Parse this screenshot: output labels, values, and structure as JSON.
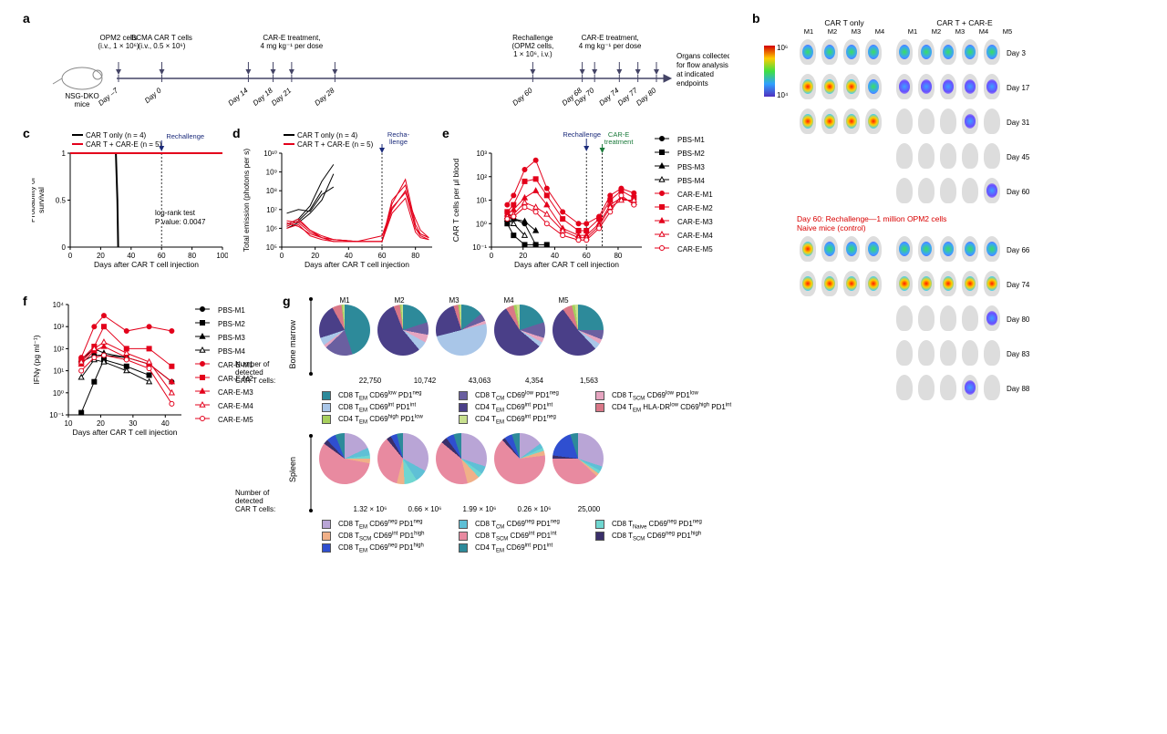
{
  "panels": {
    "a": "a",
    "b": "b",
    "c": "c",
    "d": "d",
    "e": "e",
    "f": "f",
    "g": "g"
  },
  "timeline": {
    "mouse_label": "NSG-DKO\nmice",
    "end_label": "Organs collected\nfor flow analysis\nat indicated\nendpoints",
    "events": [
      {
        "day": -7,
        "label": "OPM2 cells\n(i.v., 1 × 10⁶)"
      },
      {
        "day": 0,
        "label": "BCMA CAR T cells\n(i.v., 0.5 × 10⁶)"
      },
      {
        "day": 14,
        "label": "CAR-E treatment,\n4 mg kg⁻¹ per dose"
      },
      {
        "day": 18,
        "label": ""
      },
      {
        "day": 21,
        "label": ""
      },
      {
        "day": 28,
        "label": ""
      },
      {
        "day": 60,
        "label": "Rechallenge\n(OPM2 cells,\n1 × 10⁶, i.v.)"
      },
      {
        "day": 68,
        "label": "CAR-E treatment,\n4 mg kg⁻¹ per dose"
      },
      {
        "day": 70,
        "label": ""
      },
      {
        "day": 74,
        "label": ""
      },
      {
        "day": 77,
        "label": ""
      },
      {
        "day": 80,
        "label": ""
      }
    ],
    "day_labels": [
      "Day –7",
      "Day 0",
      "Day 14",
      "Day 18",
      "Day 21",
      "Day 28",
      "Day 60",
      "Day 68",
      "Day 70",
      "Day 74",
      "Day 77",
      "Day 80"
    ]
  },
  "imaging": {
    "col_headers": [
      "CAR T only",
      "CAR T + CAR-E"
    ],
    "mice_headers_left": [
      "M1",
      "M2",
      "M3",
      "M4"
    ],
    "mice_headers_right": [
      "M1",
      "M2",
      "M3",
      "M4",
      "M5"
    ],
    "rows_top": [
      "Day 3",
      "Day 17",
      "Day 31",
      "Day 45",
      "Day 60"
    ],
    "left_present": [
      true,
      true,
      true,
      false,
      false
    ],
    "rechallenge_text": "Day 60: Rechallenge—1 million OPM2 cells",
    "naive_text": "Naive mice (control)",
    "rows_bottom": [
      "Day 66",
      "Day 74",
      "Day 80",
      "Day 83",
      "Day 88"
    ],
    "bottom_left_present": [
      true,
      true,
      false,
      false,
      false
    ],
    "colorbar": {
      "min_label": "10⁴",
      "max_label": "10⁶"
    },
    "intensity_colors": {
      "high": "linear-gradient(circle, #ff0000, #ffff00)",
      "c_high": "radial-gradient(circle, #ff1a00 0%, #ffd000 40%, #3dd0ff 80%)",
      "c_med": "radial-gradient(circle, #38e060 0%, #3da0ff 60%, #6a4dff 100%)",
      "c_low": "radial-gradient(circle, #3da0ff 0%, #6a4dff 60%, rgba(0,0,0,0) 100%)",
      "c_none": "none"
    },
    "top_intensity": {
      "left": [
        [
          "c_med",
          "c_med",
          "c_med",
          "c_med"
        ],
        [
          "c_high",
          "c_high",
          "c_high",
          "c_med"
        ],
        [
          "c_high",
          "c_high",
          "c_high",
          "c_high"
        ]
      ],
      "right": [
        [
          "c_med",
          "c_med",
          "c_med",
          "c_med",
          "c_med"
        ],
        [
          "c_low",
          "c_low",
          "c_low",
          "c_low",
          "c_low"
        ],
        [
          "c_none",
          "c_none",
          "c_none",
          "c_low",
          "c_none"
        ],
        [
          "c_none",
          "c_none",
          "c_none",
          "c_none",
          "c_none"
        ],
        [
          "c_none",
          "c_none",
          "c_none",
          "c_none",
          "c_low"
        ]
      ]
    },
    "bottom_intensity": {
      "left": [
        [
          "c_high",
          "c_med",
          "c_med",
          "c_med"
        ],
        [
          "c_high",
          "c_high",
          "c_high",
          "c_high"
        ]
      ],
      "right": [
        [
          "c_med",
          "c_med",
          "c_med",
          "c_med",
          "c_med"
        ],
        [
          "c_high",
          "c_high",
          "c_high",
          "c_high",
          "c_high"
        ],
        [
          "c_none",
          "c_none",
          "c_none",
          "c_none",
          "c_low"
        ],
        [
          "c_none",
          "c_none",
          "c_none",
          "c_none",
          "c_none"
        ],
        [
          "c_none",
          "c_none",
          "c_none",
          "c_low",
          "c_none"
        ]
      ]
    }
  },
  "panelC": {
    "ylabel": "Probability of\nsurvival",
    "xlabel": "Days after CAR T cell injection",
    "legend": [
      {
        "label": "CAR T only (n = 4)",
        "color": "#000000"
      },
      {
        "label": "CAR T + CAR-E (n = 5)",
        "color": "#e3001b"
      }
    ],
    "rechallenge": "Rechallenge",
    "stats": "log-rank test\nP value: 0.0047",
    "xlim": [
      0,
      100
    ],
    "xticks": [
      0,
      20,
      40,
      60,
      80,
      100
    ],
    "ylim": [
      0,
      1.0
    ],
    "yticks": [
      0,
      0.5,
      1.0
    ],
    "series": {
      "CAR_T_only": {
        "x": [
          0,
          30,
          31,
          31.5
        ],
        "y": [
          1,
          1,
          0.5,
          0
        ],
        "color": "#000000"
      },
      "CAR_T_CARE": {
        "x": [
          0,
          100
        ],
        "y": [
          1,
          1
        ],
        "color": "#e3001b"
      }
    },
    "rechallenge_x": 60
  },
  "panelD": {
    "ylabel": "Total emission (photons per s)",
    "xlabel": "Days after CAR T cell injection",
    "legend": [
      {
        "label": "CAR T only (n = 4)",
        "color": "#000000"
      },
      {
        "label": "CAR T + CAR-E (n = 5)",
        "color": "#e3001b"
      }
    ],
    "rechallenge": "Recha-\nllenge",
    "xlim": [
      0,
      90
    ],
    "xticks": [
      0,
      20,
      40,
      60,
      80
    ],
    "ylim": [
      5,
      10
    ],
    "yticks_labels": [
      "10⁵",
      "10⁶",
      "10⁷",
      "10⁸",
      "10⁹",
      "10¹⁰"
    ],
    "rechallenge_x": 60,
    "series_black": [
      {
        "x": [
          3,
          10,
          17,
          24,
          31
        ],
        "y": [
          6.2,
          6.5,
          7.2,
          8.5,
          9.4
        ]
      },
      {
        "x": [
          3,
          10,
          17,
          24,
          31
        ],
        "y": [
          6.0,
          6.3,
          6.8,
          7.5,
          8.9
        ]
      },
      {
        "x": [
          3,
          10,
          17,
          24
        ],
        "y": [
          6.1,
          6.4,
          7.0,
          8.0
        ]
      },
      {
        "x": [
          3,
          10,
          17,
          24,
          31
        ],
        "y": [
          6.8,
          7.0,
          6.9,
          7.8,
          8.2
        ]
      }
    ],
    "series_red": [
      {
        "x": [
          3,
          10,
          17,
          24,
          31,
          45,
          60,
          66,
          74,
          80,
          83,
          88
        ],
        "y": [
          6.2,
          6.5,
          5.9,
          5.6,
          5.4,
          5.3,
          5.3,
          7.3,
          8.6,
          6.2,
          5.7,
          5.5
        ]
      },
      {
        "x": [
          3,
          10,
          17,
          24,
          31,
          45,
          60,
          66,
          74,
          80,
          83,
          88
        ],
        "y": [
          6.4,
          6.3,
          5.8,
          5.5,
          5.4,
          5.3,
          5.3,
          7.0,
          8.0,
          6.0,
          5.6,
          5.4
        ]
      },
      {
        "x": [
          3,
          10,
          17,
          24,
          31,
          45,
          60,
          66,
          74,
          80,
          83,
          88
        ],
        "y": [
          6.3,
          6.1,
          5.7,
          5.5,
          5.3,
          5.3,
          5.3,
          7.5,
          8.3,
          6.0,
          5.7,
          5.5
        ]
      },
      {
        "x": [
          3,
          10,
          17,
          24,
          31,
          45,
          60,
          66,
          74,
          80,
          83,
          88
        ],
        "y": [
          6.0,
          6.2,
          5.6,
          5.4,
          5.3,
          5.3,
          5.3,
          6.8,
          7.6,
          5.8,
          5.5,
          5.4
        ]
      },
      {
        "x": [
          3,
          10,
          17,
          24,
          31,
          45,
          60,
          66,
          74,
          80,
          83,
          88
        ],
        "y": [
          6.1,
          6.4,
          5.9,
          5.5,
          5.4,
          5.3,
          5.6,
          7.1,
          7.9,
          6.5,
          5.9,
          5.5
        ]
      }
    ]
  },
  "panelE": {
    "ylabel": "CAR T cells per μl blood",
    "xlabel": "Days after CAR T cell injection",
    "rechallenge": "Rechallenge",
    "care_treat": "CAR-E\ntreatment",
    "rechallenge_x": 60,
    "care_x": 70,
    "xlim": [
      0,
      95
    ],
    "xticks": [
      0,
      20,
      40,
      60,
      80
    ],
    "ylim": [
      -1,
      3
    ],
    "yticks_labels": [
      "10⁻¹",
      "10⁰",
      "10¹",
      "10²",
      "10³"
    ],
    "legend": [
      {
        "id": "PBS-M1",
        "color": "#000",
        "marker": "circle",
        "fill": true
      },
      {
        "id": "PBS-M2",
        "color": "#000",
        "marker": "square",
        "fill": true
      },
      {
        "id": "PBS-M3",
        "color": "#000",
        "marker": "triangle",
        "fill": true
      },
      {
        "id": "PBS-M4",
        "color": "#000",
        "marker": "triangle",
        "fill": false
      },
      {
        "id": "CAR-E-M1",
        "color": "#e3001b",
        "marker": "circle",
        "fill": true
      },
      {
        "id": "CAR-E-M2",
        "color": "#e3001b",
        "marker": "square",
        "fill": true
      },
      {
        "id": "CAR-E-M3",
        "color": "#e3001b",
        "marker": "triangle",
        "fill": true
      },
      {
        "id": "CAR-E-M4",
        "color": "#e3001b",
        "marker": "triangle",
        "fill": false
      },
      {
        "id": "CAR-E-M5",
        "color": "#e3001b",
        "marker": "circle",
        "fill": false
      }
    ],
    "series": {
      "pbs": [
        {
          "x": [
            10,
            14,
            21,
            28
          ],
          "y": [
            0.5,
            0.2,
            0.0,
            -0.9
          ]
        },
        {
          "x": [
            10,
            14,
            21,
            28,
            35
          ],
          "y": [
            0.0,
            -0.5,
            -0.9,
            -0.9,
            -0.9
          ]
        },
        {
          "x": [
            10,
            14,
            21,
            28
          ],
          "y": [
            0.3,
            0.2,
            0.1,
            -0.3
          ]
        },
        {
          "x": [
            10,
            14,
            21
          ],
          "y": [
            0.2,
            0.0,
            -0.5
          ]
        }
      ],
      "care": [
        {
          "x": [
            10,
            14,
            21,
            28,
            35,
            45,
            55,
            60,
            68,
            75,
            82,
            90
          ],
          "y": [
            0.8,
            1.2,
            2.3,
            2.7,
            1.5,
            0.5,
            0.0,
            0.0,
            0.3,
            1.2,
            1.5,
            1.3
          ]
        },
        {
          "x": [
            10,
            14,
            21,
            28,
            35,
            45,
            55,
            60,
            68,
            75,
            82,
            90
          ],
          "y": [
            0.5,
            0.8,
            1.8,
            1.9,
            1.2,
            0.2,
            -0.3,
            -0.3,
            0.2,
            1.0,
            1.4,
            1.1
          ]
        },
        {
          "x": [
            10,
            14,
            21,
            28,
            35,
            45,
            55,
            60,
            68,
            75,
            82,
            90
          ],
          "y": [
            0.4,
            0.6,
            1.1,
            1.4,
            0.8,
            -0.2,
            -0.5,
            -0.5,
            0.0,
            0.8,
            1.1,
            0.9
          ]
        },
        {
          "x": [
            10,
            14,
            21,
            28,
            35,
            45,
            55,
            60,
            68,
            75,
            82,
            90
          ],
          "y": [
            0.3,
            0.4,
            0.9,
            0.7,
            0.4,
            -0.3,
            -0.6,
            -0.6,
            -0.1,
            0.7,
            1.0,
            1.0
          ]
        },
        {
          "x": [
            10,
            14,
            21,
            28,
            35,
            45,
            55,
            60,
            68,
            75,
            82,
            90
          ],
          "y": [
            0.2,
            0.3,
            0.7,
            0.5,
            0.0,
            -0.5,
            -0.7,
            -0.7,
            -0.2,
            0.5,
            1.2,
            0.8
          ]
        }
      ]
    }
  },
  "panelF": {
    "ylabel": "IFNγ (pg ml⁻¹)",
    "xlabel": "Days after CAR T cell injection",
    "xlim": [
      10,
      45
    ],
    "xticks": [
      10,
      20,
      30,
      40
    ],
    "ylim": [
      -1,
      4
    ],
    "yticks_labels": [
      "10⁻¹",
      "10⁰",
      "10¹",
      "10²",
      "10³",
      "10⁴"
    ],
    "legend_same_as_e": true,
    "series": {
      "pbs": [
        {
          "x": [
            14,
            18,
            21,
            28,
            35,
            42
          ],
          "y": [
            1.4,
            1.7,
            1.7,
            1.6,
            1.3,
            0.5
          ]
        },
        {
          "x": [
            14,
            18,
            21,
            28,
            35
          ],
          "y": [
            -0.9,
            0.5,
            1.5,
            1.2,
            0.8
          ]
        },
        {
          "x": [
            14,
            18,
            21,
            28
          ],
          "y": [
            1.5,
            2.0,
            1.8,
            1.6
          ]
        },
        {
          "x": [
            14,
            18,
            21,
            28,
            35
          ],
          "y": [
            0.7,
            1.5,
            1.4,
            1.0,
            0.5
          ]
        }
      ],
      "care": [
        {
          "x": [
            14,
            18,
            21,
            28,
            35,
            42
          ],
          "y": [
            1.6,
            3.0,
            3.5,
            2.8,
            3.0,
            2.8
          ]
        },
        {
          "x": [
            14,
            18,
            21,
            28,
            35,
            42
          ],
          "y": [
            1.5,
            2.1,
            3.0,
            2.0,
            2.0,
            1.2
          ]
        },
        {
          "x": [
            14,
            18,
            21,
            28,
            35,
            42
          ],
          "y": [
            1.3,
            1.9,
            2.1,
            1.6,
            1.3,
            0.5
          ]
        },
        {
          "x": [
            14,
            18,
            21,
            28,
            35,
            42
          ],
          "y": [
            1.4,
            2.0,
            2.3,
            1.8,
            1.4,
            0.0
          ]
        },
        {
          "x": [
            14,
            18,
            21,
            28,
            35,
            42
          ],
          "y": [
            1.0,
            1.6,
            1.7,
            1.5,
            1.1,
            -0.5
          ]
        }
      ]
    }
  },
  "panelG": {
    "bone_marrow_label": "Bone marrow",
    "spleen_label": "Spleen",
    "count_label": "Number of\ndetected\nCAR T cells:",
    "mice": [
      "M1",
      "M2",
      "M3",
      "M4",
      "M5"
    ],
    "bm_counts": [
      "22,750",
      "10,742",
      "43,063",
      "4,354",
      "1,563"
    ],
    "sp_counts": [
      "1.32 × 10⁶",
      "0.66 × 10⁶",
      "1.99 × 10⁶",
      "0.26 × 10⁶",
      "25,000"
    ],
    "bm_colors": [
      "#2d8a9a",
      "#6a5fa0",
      "#e6a5c0",
      "#a9c6e8",
      "#4a3f88",
      "#d97787",
      "#a7cf5c",
      "#c8e08e"
    ],
    "bm_legend": [
      "CD8 T<sub>EM</sub> CD69<sup>low</sup> PD1<sup>neg</sup>",
      "CD8 T<sub>CM</sub> CD69<sup>low</sup> PD1<sup>neg</sup>",
      "CD8 T<sub>SCM</sub> CD69<sup>low</sup> PD1<sup>low</sup>",
      "CD8 T<sub>EM</sub> CD69<sup>int</sup> PD1<sup>int</sup>",
      "CD4 T<sub>EM</sub> CD69<sup>int</sup> PD1<sup>int</sup>",
      "CD4 T<sub>EM</sub> HLA-DR<sup>low</sup> CD69<sup>high</sup> PD1<sup>int</sup>",
      "CD4 T<sub>EM</sub> CD69<sup>high</sup> PD1<sup>low</sup>",
      "CD4 T<sub>EM</sub> CD69<sup>int</sup> PD1<sup>neg</sup>"
    ],
    "bm_legend_order": [
      0,
      3,
      6,
      1,
      4,
      7,
      2,
      5
    ],
    "sp_colors": [
      "#b9a5d6",
      "#5fc0d6",
      "#6fd6d0",
      "#f0b088",
      "#e88aa0",
      "#3a2f6a",
      "#2f4fd0",
      "#2d8a9a"
    ],
    "sp_legend": [
      "CD8 T<sub>EM</sub> CD69<sup>neg</sup> PD1<sup>neg</sup>",
      "CD8 T<sub>CM</sub> CD69<sup>neg</sup> PD1<sup>neg</sup>",
      "CD8 T<sub>Naive</sub> CD69<sup>neg</sup> PD1<sup>neg</sup>",
      "CD8 T<sub>SCM</sub> CD69<sup>int</sup> PD1<sup>high</sup>",
      "CD8 T<sub>SCM</sub> CD69<sup>int</sup> PD1<sup>int</sup>",
      "CD8 T<sub>SCM</sub> CD69<sup>neg</sup> PD1<sup>high</sup>",
      "CD8 T<sub>EM</sub> CD69<sup>neg</sup> PD1<sup>high</sup>",
      "CD4 T<sub>EM</sub> CD69<sup>int</sup> PD1<sup>int</sup>"
    ],
    "sp_legend_order": [
      0,
      3,
      6,
      1,
      4,
      7,
      2,
      5
    ],
    "bm_slices": [
      [
        45,
        18,
        2,
        5,
        22,
        6,
        1,
        1
      ],
      [
        20,
        8,
        5,
        6,
        55,
        4,
        1,
        1
      ],
      [
        14,
        5,
        2,
        50,
        24,
        3,
        1,
        1
      ],
      [
        20,
        10,
        3,
        3,
        55,
        5,
        2,
        2
      ],
      [
        25,
        6,
        3,
        4,
        52,
        6,
        2,
        2
      ]
    ],
    "sp_slices": [
      [
        18,
        5,
        2,
        3,
        57,
        3,
        6,
        6
      ],
      [
        33,
        8,
        8,
        5,
        35,
        3,
        4,
        4
      ],
      [
        30,
        5,
        3,
        8,
        40,
        4,
        5,
        5
      ],
      [
        15,
        3,
        2,
        3,
        65,
        2,
        5,
        5
      ],
      [
        30,
        3,
        2,
        2,
        38,
        2,
        18,
        5
      ]
    ]
  },
  "colors": {
    "black": "#000000",
    "red": "#e3001b",
    "blue_annot": "#1a2a7a",
    "green_annot": "#1a7a3a"
  }
}
